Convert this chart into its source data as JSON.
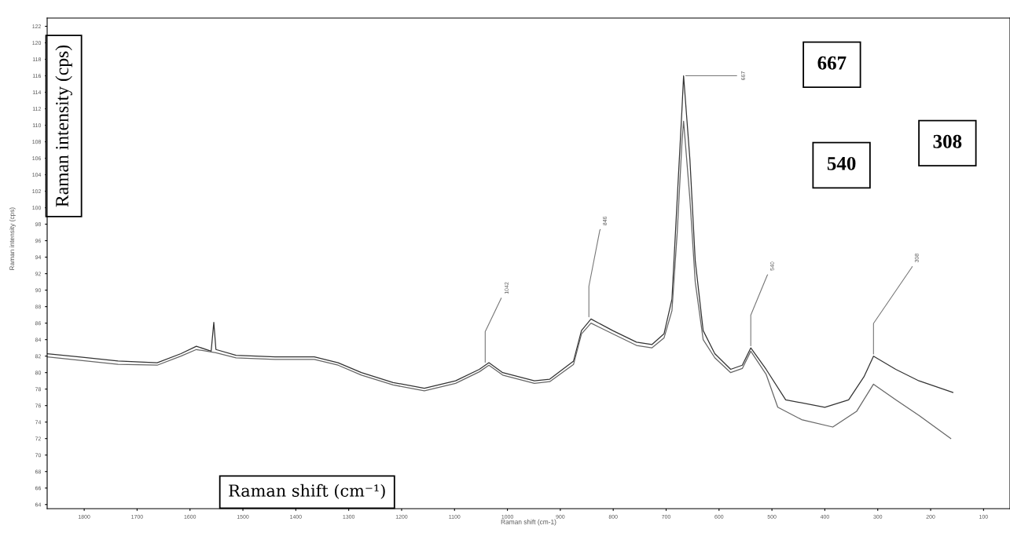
{
  "chart_data": {
    "type": "line",
    "xlabel": "Raman shift (cm⁻¹)",
    "ylabel": "Raman intensity (cps)",
    "xlim": [
      1870,
      50
    ],
    "ylim": [
      63.5,
      123
    ],
    "xticks": [
      1800,
      1700,
      1600,
      1500,
      1400,
      1300,
      1200,
      1100,
      1000,
      900,
      800,
      700,
      600,
      500,
      400,
      300,
      200,
      100
    ],
    "yticks": [
      64,
      66,
      68,
      70,
      72,
      74,
      76,
      78,
      80,
      82,
      84,
      86,
      88,
      90,
      92,
      94,
      96,
      98,
      100,
      102,
      104,
      106,
      108,
      110,
      112,
      114,
      116,
      118,
      120,
      122
    ],
    "grid": false,
    "legend": false,
    "marker": "none",
    "line_style": "solid",
    "series": [
      {
        "color": "#333333",
        "x": [
          1870,
          1810,
          1736,
          1662,
          1617,
          1588,
          1560,
          1555,
          1551,
          1513,
          1439,
          1365,
          1320,
          1276,
          1216,
          1157,
          1098,
          1053,
          1035,
          1009,
          949,
          920,
          875,
          860,
          842,
          801,
          756,
          727,
          704,
          689,
          679,
          670,
          667,
          655,
          645,
          630,
          608,
          578,
          556,
          540,
          511,
          474,
          400,
          355,
          326,
          308,
          266,
          222,
          158
        ],
        "values": [
          82.3,
          81.9,
          81.4,
          81.2,
          82.3,
          83.2,
          82.6,
          86.1,
          82.8,
          82.1,
          81.9,
          81.9,
          81.2,
          80.0,
          78.8,
          78.1,
          79.0,
          80.4,
          81.2,
          80.0,
          79.0,
          79.2,
          81.4,
          85.1,
          86.5,
          85.1,
          83.7,
          83.4,
          84.7,
          88.9,
          101.1,
          112.0,
          116.0,
          105.8,
          93.6,
          85.1,
          82.3,
          80.4,
          80.9,
          83.0,
          80.4,
          76.7,
          75.8,
          76.7,
          79.5,
          82.0,
          80.4,
          79.0,
          77.6
        ]
      },
      {
        "color": "#666666",
        "x": [
          1870,
          1810,
          1736,
          1662,
          1617,
          1588,
          1551,
          1513,
          1439,
          1365,
          1320,
          1276,
          1216,
          1157,
          1098,
          1053,
          1035,
          1009,
          949,
          920,
          875,
          860,
          842,
          801,
          756,
          727,
          704,
          689,
          679,
          670,
          667,
          655,
          645,
          630,
          608,
          578,
          556,
          540,
          511,
          489,
          444,
          385,
          340,
          308,
          266,
          222,
          162
        ],
        "values": [
          81.9,
          81.5,
          81.0,
          80.9,
          82.0,
          82.8,
          82.4,
          81.8,
          81.6,
          81.6,
          80.9,
          79.7,
          78.5,
          77.8,
          78.7,
          80.1,
          80.9,
          79.7,
          78.7,
          78.9,
          81.0,
          84.7,
          86.0,
          84.7,
          83.3,
          83.0,
          84.2,
          87.5,
          97.0,
          108.0,
          110.5,
          101.0,
          91.0,
          84.0,
          81.8,
          80.0,
          80.5,
          82.6,
          79.8,
          75.8,
          74.3,
          73.4,
          75.3,
          78.6,
          76.7,
          74.8,
          72.0
        ]
      }
    ],
    "annotations": [
      {
        "text": "1042",
        "x": 1042,
        "y": 81
      },
      {
        "text": "846",
        "x": 846,
        "y": 86.5
      },
      {
        "text": "667",
        "x": 667,
        "y": 116
      },
      {
        "text": "540",
        "x": 540,
        "y": 83
      },
      {
        "text": "308",
        "x": 308,
        "y": 82
      },
      "667",
      "540",
      "308",
      "Raman intensity (cps)",
      "Raman shift (cm-1)"
    ]
  }
}
